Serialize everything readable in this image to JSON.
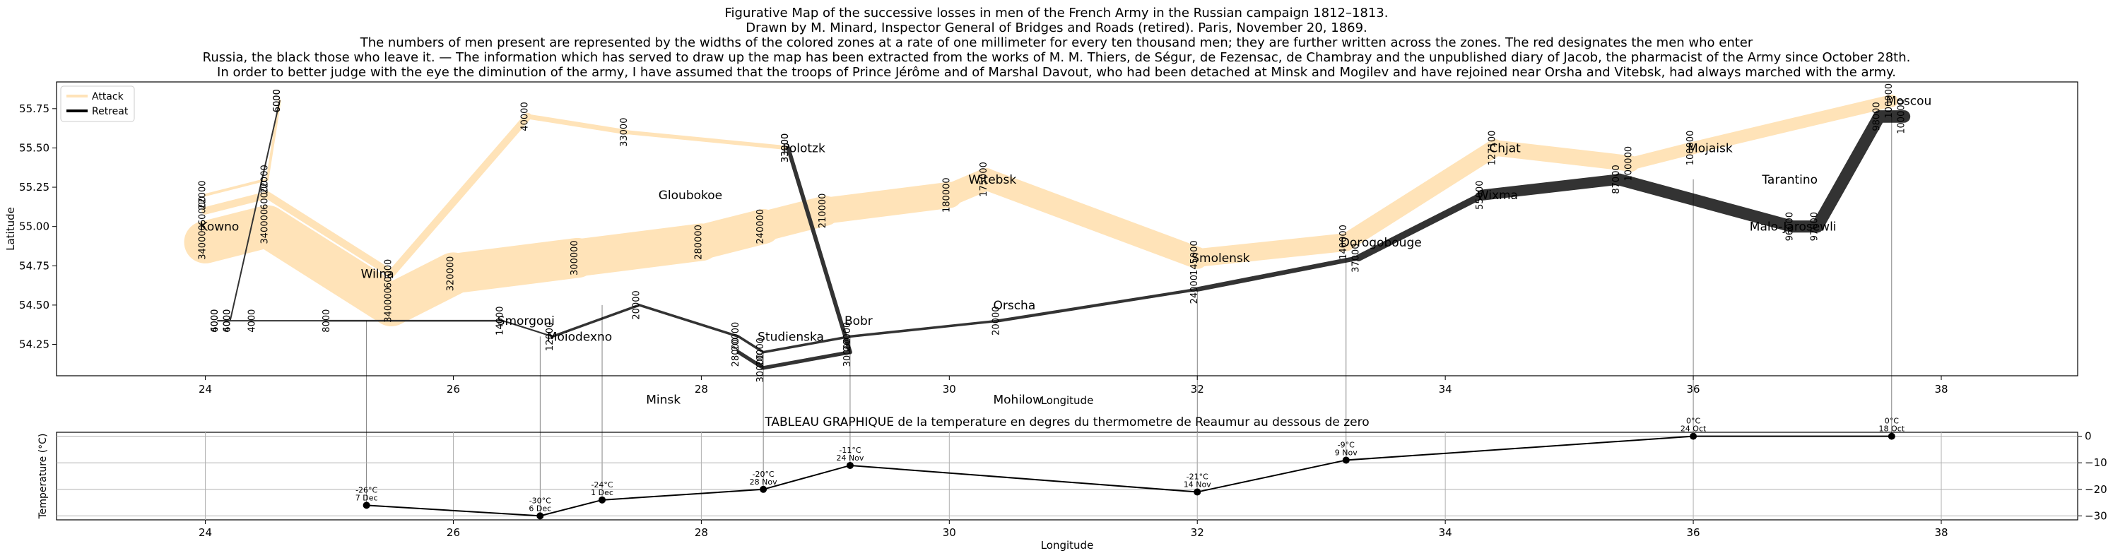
{
  "title_lines": [
    "Figurative Map of the successive losses in men of the French Army in the Russian campaign 1812–1813.",
    "Drawn by M. Minard, Inspector General of Bridges and Roads (retired). Paris, November 20, 1869.",
    "The numbers of men present are represented by the widths of the colored zones at a rate of one millimeter for every ten thousand men; they are further written across the zones. The red designates the men who enter",
    "Russia, the black those who leave it. — The information which has served to draw up the map has been extracted from the works of M. M. Thiers, de Ségur, de Fezensac, de Chambray and the unpublished diary of Jacob, the pharmacist of the Army since October 28th.",
    "In order to better judge with the eye the diminution of the army, I have assumed that the troops of Prince Jérôme and of Marshal Davout, who had been detached at Minsk and Mogilev and have rejoined near Orsha and Vitebsk, had always marched with the army."
  ],
  "colors": {
    "attack": "#ffe3b8",
    "retreat": "#333333",
    "line": "#000000",
    "grid": "#b0b0b0"
  },
  "chart_data": [
    {
      "type": "line",
      "xlabel": "Longitude",
      "ylabel": "Latitude",
      "xlim": [
        22.8,
        39.1
      ],
      "ylim": [
        54.05,
        55.92
      ],
      "xticks": [
        24,
        26,
        28,
        30,
        32,
        34,
        36,
        38
      ],
      "yticks": [
        54.25,
        54.5,
        54.75,
        55.0,
        55.25,
        55.5,
        55.75
      ],
      "xtick_labels": [
        "24",
        "26",
        "28",
        "30",
        "32",
        "34",
        "36",
        "38"
      ],
      "ytick_labels": [
        "54.25",
        "54.50",
        "54.75",
        "55.00",
        "55.25",
        "55.50",
        "55.75"
      ],
      "grid": false,
      "legend_position": "top-left",
      "legend": [
        {
          "name": "Attack",
          "color": "#ffe3b8"
        },
        {
          "name": "Retreat",
          "color": "#000000"
        }
      ],
      "series": [
        {
          "type": "attack",
          "group": 1,
          "points": [
            [
              24.0,
              54.9,
              340000
            ],
            [
              24.5,
              55.0,
              340000
            ],
            [
              25.5,
              54.5,
              340000
            ],
            [
              26.0,
              54.7,
              320000
            ],
            [
              27.0,
              54.8,
              300000
            ],
            [
              28.0,
              54.9,
              280000
            ],
            [
              28.5,
              55.0,
              240000
            ],
            [
              29.0,
              55.1,
              210000
            ],
            [
              30.0,
              55.2,
              180000
            ],
            [
              30.3,
              55.3,
              175000
            ],
            [
              32.0,
              54.8,
              145000
            ],
            [
              33.2,
              54.9,
              140000
            ],
            [
              34.4,
              55.5,
              127100
            ],
            [
              35.5,
              55.4,
              100000
            ],
            [
              36.0,
              55.5,
              100000
            ],
            [
              37.6,
              55.8,
              100000
            ]
          ]
        },
        {
          "type": "retreat",
          "group": 1,
          "points": [
            [
              37.7,
              55.7,
              100000
            ],
            [
              37.5,
              55.7,
              98000
            ],
            [
              37.0,
              55.0,
              97000
            ],
            [
              36.8,
              55.0,
              96000
            ],
            [
              35.4,
              55.3,
              87000
            ],
            [
              34.3,
              55.2,
              55000
            ],
            [
              33.3,
              54.8,
              37000
            ],
            [
              32.0,
              54.6,
              24000
            ],
            [
              30.4,
              54.4,
              20000
            ],
            [
              29.2,
              54.3,
              20000
            ],
            [
              28.5,
              54.2,
              20000
            ],
            [
              28.3,
              54.3,
              20000
            ],
            [
              27.5,
              54.5,
              20000
            ],
            [
              26.8,
              54.3,
              12000
            ],
            [
              26.4,
              54.4,
              14000
            ],
            [
              25.0,
              54.4,
              8000
            ],
            [
              24.4,
              54.4,
              4000
            ],
            [
              24.2,
              54.4,
              4000
            ],
            [
              24.1,
              54.4,
              4000
            ]
          ]
        },
        {
          "type": "attack",
          "group": 2,
          "points": [
            [
              24.0,
              55.1,
              60000
            ],
            [
              24.5,
              55.2,
              60000
            ],
            [
              25.5,
              54.7,
              60000
            ],
            [
              26.6,
              55.7,
              40000
            ],
            [
              27.4,
              55.6,
              33000
            ],
            [
              28.7,
              55.5,
              33000
            ]
          ]
        },
        {
          "type": "retreat",
          "group": 2,
          "points": [
            [
              28.7,
              55.5,
              33000
            ],
            [
              29.2,
              54.2,
              30000
            ],
            [
              28.5,
              54.1,
              30000
            ],
            [
              28.3,
              54.2,
              28000
            ]
          ]
        },
        {
          "type": "attack",
          "group": 3,
          "points": [
            [
              24.0,
              55.2,
              22000
            ],
            [
              24.5,
              55.3,
              22000
            ],
            [
              24.6,
              55.8,
              6000
            ]
          ]
        },
        {
          "type": "retreat",
          "group": 3,
          "points": [
            [
              24.6,
              55.8,
              6000
            ],
            [
              24.2,
              54.4,
              6000
            ],
            [
              24.1,
              54.4,
              6000
            ]
          ]
        }
      ],
      "cities": [
        {
          "name": "Kowno",
          "lon": 24.0,
          "lat": 55.0
        },
        {
          "name": "Wilna",
          "lon": 25.3,
          "lat": 54.7
        },
        {
          "name": "Smorgoni",
          "lon": 26.4,
          "lat": 54.4
        },
        {
          "name": "Moiodexno",
          "lon": 26.8,
          "lat": 54.3
        },
        {
          "name": "Gloubokoe",
          "lon": 27.7,
          "lat": 55.2
        },
        {
          "name": "Minsk",
          "lon": 27.6,
          "lat": 53.9
        },
        {
          "name": "Studienska",
          "lon": 28.5,
          "lat": 54.3
        },
        {
          "name": "Polotzk",
          "lon": 28.7,
          "lat": 55.5
        },
        {
          "name": "Bobr",
          "lon": 29.2,
          "lat": 54.4
        },
        {
          "name": "Witebsk",
          "lon": 30.2,
          "lat": 55.3
        },
        {
          "name": "Orscha",
          "lon": 30.4,
          "lat": 54.5
        },
        {
          "name": "Mohilow",
          "lon": 30.4,
          "lat": 53.9
        },
        {
          "name": "Smolensk",
          "lon": 32.0,
          "lat": 54.8
        },
        {
          "name": "Dorogobouge",
          "lon": 33.2,
          "lat": 54.9
        },
        {
          "name": "Wixma",
          "lon": 34.3,
          "lat": 55.2
        },
        {
          "name": "Chjat",
          "lon": 34.4,
          "lat": 55.5
        },
        {
          "name": "Mojaisk",
          "lon": 36.0,
          "lat": 55.5
        },
        {
          "name": "Moscou",
          "lon": 37.6,
          "lat": 55.8
        },
        {
          "name": "Tarantino",
          "lon": 36.6,
          "lat": 55.3
        },
        {
          "name": "Malo-Jarosewli",
          "lon": 36.5,
          "lat": 55.0
        }
      ]
    },
    {
      "type": "line",
      "title": "TABLEAU GRAPHIQUE de la temperature en degres du thermometre de Reaumur au dessous de zero",
      "xlabel": "Longitude",
      "ylabel": "Temperature (°C)",
      "xlim": [
        22.8,
        39.1
      ],
      "ylim": [
        -31.5,
        1.5
      ],
      "xticks": [
        24,
        26,
        28,
        30,
        32,
        34,
        36,
        38
      ],
      "yticks": [
        0,
        -10,
        -20,
        -30
      ],
      "xtick_labels": [
        "24",
        "26",
        "28",
        "30",
        "32",
        "34",
        "36",
        "38"
      ],
      "ytick_labels": [
        "0",
        "−10",
        "−20",
        "−30"
      ],
      "grid": true,
      "points": [
        {
          "lon": 37.6,
          "temp": 0,
          "label": "0°C",
          "date": "18 Oct"
        },
        {
          "lon": 36.0,
          "temp": 0,
          "label": "0°C",
          "date": "24 Oct"
        },
        {
          "lon": 33.2,
          "temp": -9,
          "label": "-9°C",
          "date": "9 Nov"
        },
        {
          "lon": 32.0,
          "temp": -21,
          "label": "-21°C",
          "date": "14 Nov"
        },
        {
          "lon": 29.2,
          "temp": -11,
          "label": "-11°C",
          "date": "24 Nov"
        },
        {
          "lon": 28.5,
          "temp": -20,
          "label": "-20°C",
          "date": "28 Nov"
        },
        {
          "lon": 27.2,
          "temp": -24,
          "label": "-24°C",
          "date": "1 Dec"
        },
        {
          "lon": 26.7,
          "temp": -30,
          "label": "-30°C",
          "date": "6 Dec"
        },
        {
          "lon": 25.3,
          "temp": -26,
          "label": "-26°C",
          "date": "7 Dec"
        }
      ]
    }
  ]
}
